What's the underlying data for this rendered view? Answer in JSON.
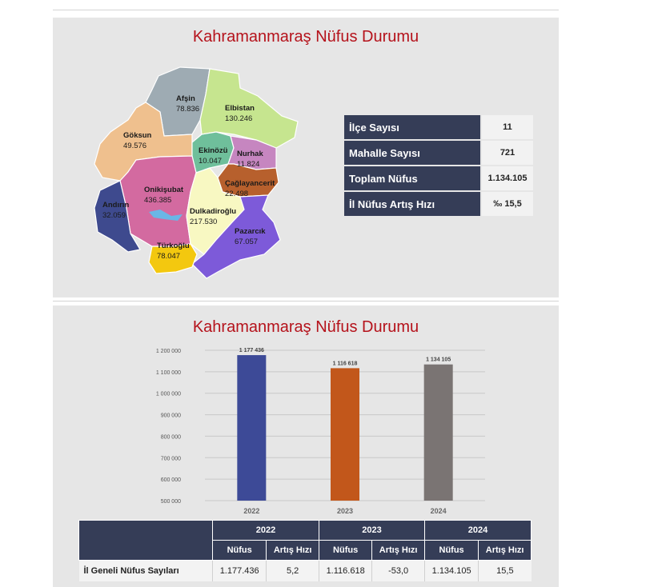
{
  "panel1": {
    "title": "Kahramanmaraş Nüfus Durumu",
    "districts": [
      {
        "name": "Afşin",
        "value": "78.836",
        "color": "#9eabb3"
      },
      {
        "name": "Elbistan",
        "value": "130.246",
        "color": "#c6e58f"
      },
      {
        "name": "Göksun",
        "value": "49.576",
        "color": "#efc08e"
      },
      {
        "name": "Ekinözü",
        "value": "10.047",
        "color": "#6fbf9b"
      },
      {
        "name": "Nurhak",
        "value": "11.824",
        "color": "#c686c0"
      },
      {
        "name": "Çağlayancerit",
        "value": "22.498",
        "color": "#b7602d"
      },
      {
        "name": "Onikişubat",
        "value": "436.385",
        "color": "#d36aa0"
      },
      {
        "name": "Andırın",
        "value": "32.059",
        "color": "#3e4a8e"
      },
      {
        "name": "Dulkadiroğlu",
        "value": "217.530",
        "color": "#f8f8c2"
      },
      {
        "name": "Pazarcık",
        "value": "67.057",
        "color": "#7d5ad9"
      },
      {
        "name": "Türkoğlu",
        "value": "78.047",
        "color": "#f3c80f"
      }
    ],
    "lake_color": "#6ab6e6",
    "info": [
      {
        "label": "İlçe Sayısı",
        "value": "11"
      },
      {
        "label": "Mahalle Sayısı",
        "value": "721"
      },
      {
        "label": "Toplam Nüfus",
        "value": "1.134.105"
      },
      {
        "label": "İl Nüfus Artış Hızı",
        "value": "‰ 15,5"
      }
    ]
  },
  "panel2": {
    "title": "Kahramanmaraş Nüfus Durumu",
    "table": {
      "years": [
        "2022",
        "2023",
        "2024"
      ],
      "sub_headers": [
        "Nüfus",
        "Artış Hızı"
      ],
      "row_label": "İl Geneli Nüfus Sayıları",
      "cells": [
        "1.177.436",
        "5,2",
        "1.116.618",
        "-53,0",
        "1.134.105",
        "15,5"
      ]
    }
  },
  "chart_data": {
    "type": "bar",
    "title": "Kahramanmaraş Nüfus Durumu",
    "categories": [
      "2022",
      "2023",
      "2024"
    ],
    "values": [
      1177436,
      1116618,
      1134105
    ],
    "value_labels": [
      "1 177 436",
      "1 116 618",
      "1 134 105"
    ],
    "colors": [
      "#3d4a97",
      "#c2571b",
      "#7a7473"
    ],
    "ylim": [
      500000,
      1200000
    ],
    "yticks": [
      500000,
      600000,
      700000,
      800000,
      900000,
      1000000,
      1100000,
      1200000
    ],
    "ytick_labels": [
      "500 000",
      "600 000",
      "700 000",
      "800 000",
      "900 000",
      "1 000 000",
      "1 100 000",
      "1 200 000"
    ],
    "xlabel": "",
    "ylabel": "",
    "grid": true,
    "legend": "none"
  }
}
